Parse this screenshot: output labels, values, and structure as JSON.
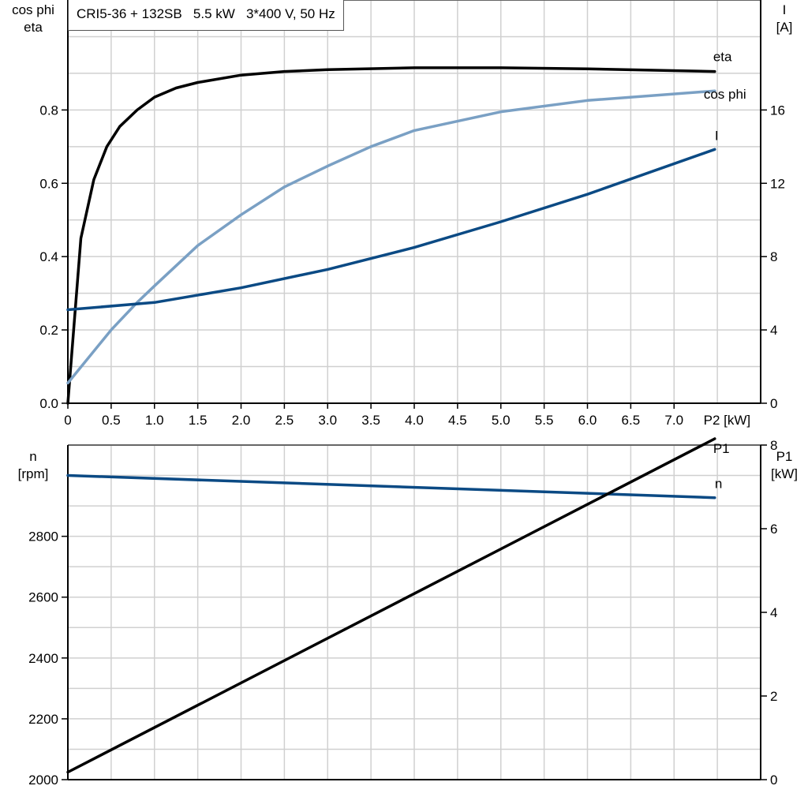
{
  "chart_data": [
    {
      "type": "line",
      "title": "CRI5-36 + 132SB   5.5 kW   3*400 V, 50 Hz",
      "xlabel": "P2 [kW]",
      "xlim": [
        0,
        8
      ],
      "xticks": [
        "0",
        "0.5",
        "1.0",
        "1.5",
        "2.0",
        "2.5",
        "3.0",
        "3.5",
        "4.0",
        "4.5",
        "5.0",
        "5.5",
        "6.0",
        "6.5",
        "7.0"
      ],
      "ylabel_left": [
        "cos phi",
        "eta"
      ],
      "ylim_left": [
        0,
        1.1
      ],
      "yticks_left": [
        "0.0",
        "0.2",
        "0.4",
        "0.6",
        "0.8"
      ],
      "ylabel_right": [
        "I",
        "[A]"
      ],
      "ylim_right": [
        0,
        22
      ],
      "yticks_right": [
        "0",
        "4",
        "8",
        "12",
        "16"
      ],
      "grid": true,
      "series": [
        {
          "name": "eta",
          "axis": "left",
          "color": "#000000",
          "x": [
            0,
            0.15,
            0.3,
            0.45,
            0.6,
            0.8,
            1.0,
            1.25,
            1.5,
            2.0,
            2.5,
            3.0,
            4.0,
            5.0,
            6.0,
            7.47
          ],
          "y": [
            0,
            0.45,
            0.61,
            0.7,
            0.755,
            0.8,
            0.835,
            0.86,
            0.875,
            0.895,
            0.905,
            0.91,
            0.915,
            0.915,
            0.912,
            0.905
          ]
        },
        {
          "name": "cos phi",
          "axis": "left",
          "color": "#7aa0c4",
          "x": [
            0,
            0.5,
            0.8,
            1.0,
            1.5,
            2.0,
            2.5,
            3.0,
            3.5,
            4.0,
            5.0,
            6.0,
            7.47
          ],
          "y": [
            0.055,
            0.2,
            0.275,
            0.32,
            0.43,
            0.514,
            0.59,
            0.647,
            0.7,
            0.744,
            0.795,
            0.826,
            0.852
          ]
        },
        {
          "name": "I",
          "axis": "right",
          "color": "#0b4a84",
          "x": [
            0,
            1,
            2,
            3,
            4,
            5,
            6,
            7.47
          ],
          "y": [
            5.1,
            5.5,
            6.3,
            7.3,
            8.5,
            9.9,
            11.4,
            13.85
          ]
        }
      ]
    },
    {
      "type": "line",
      "xlim": [
        0,
        8
      ],
      "ylabel_left": [
        "n",
        "[rpm]"
      ],
      "ylim_left": [
        2000,
        3100
      ],
      "yticks_left": [
        "2000",
        "2200",
        "2400",
        "2600",
        "2800"
      ],
      "ylabel_right": [
        "P1",
        "[kW]"
      ],
      "ylim_right": [
        0,
        8.0
      ],
      "yticks_right": [
        "0",
        "2",
        "4",
        "6",
        "8"
      ],
      "grid": true,
      "series": [
        {
          "name": "n",
          "axis": "left",
          "color": "#0b4a84",
          "x": [
            0,
            7.47
          ],
          "y": [
            3000,
            2927
          ]
        },
        {
          "name": "P1",
          "axis": "right",
          "color": "#000000",
          "x": [
            0,
            7.47
          ],
          "y": [
            0.18,
            8.15
          ]
        }
      ]
    }
  ]
}
